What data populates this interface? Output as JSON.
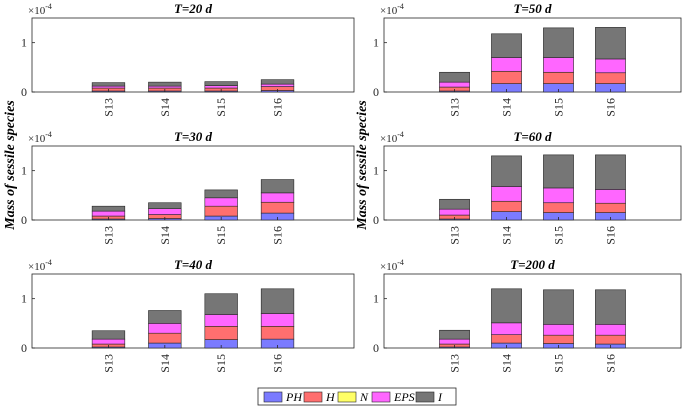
{
  "chart_data": {
    "type": "bar",
    "stacked": true,
    "ylabel": "Mass of sessile species",
    "exponent_label": "×10",
    "exponent_power": "-4",
    "yticks": [
      "0",
      "1"
    ],
    "ylim": [
      0,
      1.5
    ],
    "legend": {
      "position": "bottom-center",
      "items": [
        {
          "name": "PH",
          "color": "#7b7bff"
        },
        {
          "name": "H",
          "color": "#ff6f6f"
        },
        {
          "name": "N",
          "color": "#ffff66"
        },
        {
          "name": "EPS",
          "color": "#ff66ff"
        },
        {
          "name": "I",
          "color": "#767676"
        }
      ]
    },
    "panels": [
      {
        "title": "T=20 d",
        "categories": [
          "S13",
          "S14",
          "S15",
          "S16"
        ],
        "series": [
          {
            "name": "PH",
            "values": [
              0.02,
              0.02,
              0.02,
              0.03
            ]
          },
          {
            "name": "H",
            "values": [
              0.06,
              0.06,
              0.06,
              0.08
            ]
          },
          {
            "name": "N",
            "values": [
              0.0,
              0.0,
              0.0,
              0.0
            ]
          },
          {
            "name": "EPS",
            "values": [
              0.04,
              0.04,
              0.05,
              0.05
            ]
          },
          {
            "name": "I",
            "values": [
              0.07,
              0.08,
              0.08,
              0.09
            ]
          }
        ]
      },
      {
        "title": "T=50 d",
        "categories": [
          "S13",
          "S14",
          "S15",
          "S16"
        ],
        "series": [
          {
            "name": "PH",
            "values": [
              0.02,
              0.17,
              0.17,
              0.17
            ]
          },
          {
            "name": "H",
            "values": [
              0.08,
              0.25,
              0.23,
              0.22
            ]
          },
          {
            "name": "N",
            "values": [
              0.0,
              0.0,
              0.0,
              0.0
            ]
          },
          {
            "name": "EPS",
            "values": [
              0.1,
              0.28,
              0.3,
              0.28
            ]
          },
          {
            "name": "I",
            "values": [
              0.2,
              0.48,
              0.6,
              0.64
            ]
          }
        ]
      },
      {
        "title": "T=30 d",
        "categories": [
          "S13",
          "S14",
          "S15",
          "S16"
        ],
        "series": [
          {
            "name": "PH",
            "values": [
              0.02,
              0.03,
              0.08,
              0.14
            ]
          },
          {
            "name": "H",
            "values": [
              0.06,
              0.08,
              0.2,
              0.22
            ]
          },
          {
            "name": "N",
            "values": [
              0.0,
              0.0,
              0.0,
              0.0
            ]
          },
          {
            "name": "EPS",
            "values": [
              0.1,
              0.12,
              0.17,
              0.19
            ]
          },
          {
            "name": "I",
            "values": [
              0.1,
              0.12,
              0.16,
              0.27
            ]
          }
        ]
      },
      {
        "title": "T=60 d",
        "categories": [
          "S13",
          "S14",
          "S15",
          "S16"
        ],
        "series": [
          {
            "name": "PH",
            "values": [
              0.02,
              0.17,
              0.15,
              0.15
            ]
          },
          {
            "name": "H",
            "values": [
              0.08,
              0.21,
              0.2,
              0.19
            ]
          },
          {
            "name": "N",
            "values": [
              0.0,
              0.0,
              0.0,
              0.0
            ]
          },
          {
            "name": "EPS",
            "values": [
              0.12,
              0.3,
              0.3,
              0.28
            ]
          },
          {
            "name": "I",
            "values": [
              0.2,
              0.62,
              0.67,
              0.7
            ]
          }
        ]
      },
      {
        "title": "T=40 d",
        "categories": [
          "S13",
          "S14",
          "S15",
          "S16"
        ],
        "series": [
          {
            "name": "PH",
            "values": [
              0.02,
              0.1,
              0.17,
              0.18
            ]
          },
          {
            "name": "H",
            "values": [
              0.06,
              0.2,
              0.27,
              0.26
            ]
          },
          {
            "name": "N",
            "values": [
              0.0,
              0.0,
              0.0,
              0.0
            ]
          },
          {
            "name": "EPS",
            "values": [
              0.1,
              0.2,
              0.24,
              0.26
            ]
          },
          {
            "name": "I",
            "values": [
              0.17,
              0.26,
              0.42,
              0.5
            ]
          }
        ]
      },
      {
        "title": "T=200 d",
        "categories": [
          "S13",
          "S14",
          "S15",
          "S16"
        ],
        "series": [
          {
            "name": "PH",
            "values": [
              0.02,
              0.1,
              0.09,
              0.08
            ]
          },
          {
            "name": "H",
            "values": [
              0.06,
              0.17,
              0.17,
              0.18
            ]
          },
          {
            "name": "N",
            "values": [
              0.0,
              0.0,
              0.0,
              0.0
            ]
          },
          {
            "name": "EPS",
            "values": [
              0.1,
              0.24,
              0.22,
              0.22
            ]
          },
          {
            "name": "I",
            "values": [
              0.18,
              0.69,
              0.7,
              0.7
            ]
          }
        ]
      }
    ]
  }
}
